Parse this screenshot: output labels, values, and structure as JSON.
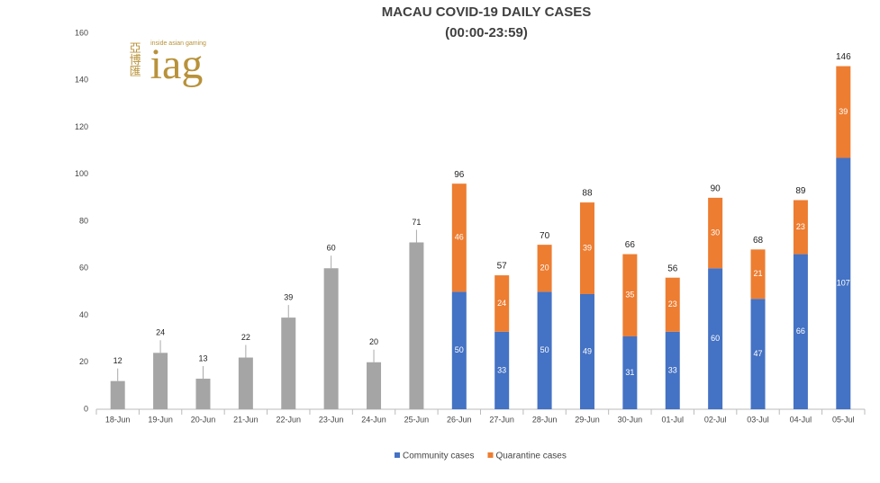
{
  "chart_data": {
    "type": "stacked_bar",
    "title": "MACAU COVID-19 DAILY CASES",
    "subtitle": "(00:00-23:59)",
    "logo": {
      "chinese": "亞博匯",
      "tagline": "inside asian gaming",
      "mark": "iag"
    },
    "categories": [
      "18-Jun",
      "19-Jun",
      "20-Jun",
      "21-Jun",
      "22-Jun",
      "23-Jun",
      "24-Jun",
      "25-Jun",
      "26-Jun",
      "27-Jun",
      "28-Jun",
      "29-Jun",
      "30-Jun",
      "01-Jul",
      "02-Jul",
      "03-Jul",
      "04-Jul",
      "05-Jul"
    ],
    "series": [
      {
        "color": "#a5a5a5",
        "values": [
          12,
          24,
          13,
          22,
          39,
          60,
          20,
          71,
          null,
          null,
          null,
          null,
          null,
          null,
          null,
          null,
          null,
          null
        ]
      },
      {
        "name": "Community cases",
        "color": "#4472c4",
        "values": [
          null,
          null,
          null,
          null,
          null,
          null,
          null,
          null,
          50,
          33,
          50,
          49,
          31,
          33,
          60,
          47,
          66,
          107
        ]
      },
      {
        "name": "Quarantine cases",
        "color": "#ed7d31",
        "values": [
          null,
          null,
          null,
          null,
          null,
          null,
          null,
          null,
          46,
          24,
          20,
          39,
          35,
          23,
          30,
          21,
          23,
          39
        ]
      }
    ],
    "totals": [
      null,
      null,
      null,
      null,
      null,
      null,
      null,
      null,
      96,
      57,
      70,
      88,
      66,
      56,
      90,
      68,
      89,
      146
    ],
    "ylim": [
      0,
      160
    ],
    "yticks": [
      0,
      20,
      40,
      60,
      80,
      100,
      120,
      140,
      160
    ],
    "grid": false,
    "legend": "bottom"
  }
}
